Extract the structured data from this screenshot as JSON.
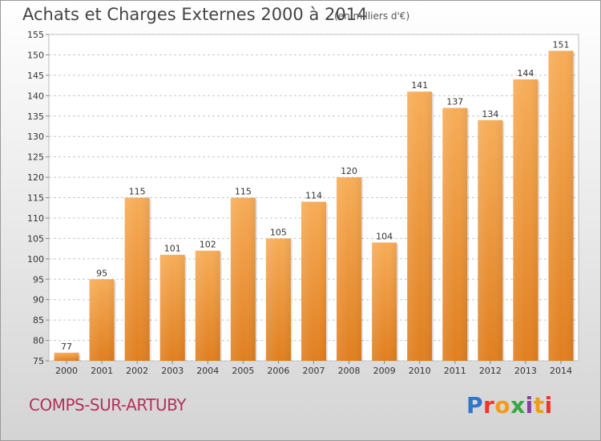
{
  "header": {
    "title": "Achats et Charges Externes 2000 à 2014",
    "subtitle": "(en milliers d'€)"
  },
  "footer": {
    "location": "COMPS-SUR-ARTUBY",
    "logo_text": "Proxiti",
    "logo_colors": [
      "#2e77c8",
      "#e8382a",
      "#f19b1b",
      "#3aa640",
      "#8a3fa0",
      "#f19b1b",
      "#e8382a"
    ]
  },
  "chart_data": {
    "type": "bar",
    "title": "Achats et Charges Externes 2000 à 2014",
    "subtitle": "(en milliers d'€)",
    "xlabel": "",
    "ylabel": "",
    "categories": [
      "2000",
      "2001",
      "2002",
      "2003",
      "2004",
      "2005",
      "2006",
      "2007",
      "2008",
      "2009",
      "2010",
      "2011",
      "2012",
      "2013",
      "2014"
    ],
    "values": [
      77,
      95,
      115,
      101,
      102,
      115,
      105,
      114,
      120,
      104,
      141,
      137,
      134,
      144,
      151
    ],
    "value_labels": [
      "77",
      "95",
      "115",
      "101",
      "102",
      "115",
      "105",
      "114",
      "120",
      "104",
      "141",
      "137",
      "134",
      "144",
      "151"
    ],
    "ylim": [
      75,
      155
    ],
    "yticks": [
      75,
      80,
      85,
      90,
      95,
      100,
      105,
      110,
      115,
      120,
      125,
      130,
      135,
      140,
      145,
      150,
      155
    ],
    "grid": "horizontal dashed",
    "bar_color": "#f0a048",
    "bar_color_light": "#f7b664",
    "bar_color_dark": "#dd7e22"
  }
}
